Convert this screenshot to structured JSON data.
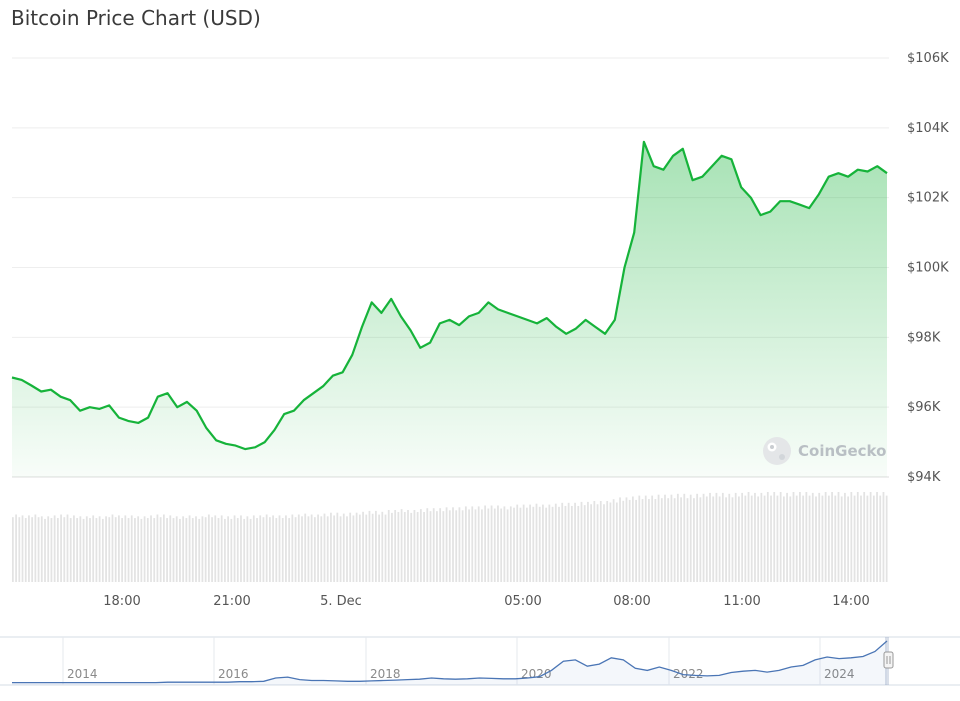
{
  "title": "Bitcoin Price Chart (USD)",
  "watermark": "CoinGecko",
  "colors": {
    "line": "#16b33a",
    "fill_top": "#16b33a",
    "grid": "#eeeeee",
    "volume": "#e3e3e3",
    "navigator": "#4a75b5"
  },
  "chart_data": [
    {
      "type": "area",
      "title": "Bitcoin Price Chart (USD)",
      "x_ticks": [
        "18:00",
        "21:00",
        "5. Dec",
        "05:00",
        "08:00",
        "11:00",
        "14:00"
      ],
      "y_ticks": [
        "$106K",
        "$104K",
        "$102K",
        "$100K",
        "$98K",
        "$96K",
        "$94K"
      ],
      "ylim": [
        94000,
        106000
      ],
      "series": [
        {
          "values": [
            96850,
            96780,
            96620,
            96450,
            96500,
            96300,
            96200,
            95900,
            96000,
            95950,
            96050,
            95700,
            95600,
            95550,
            95700,
            96300,
            96400,
            96000,
            96150,
            95900,
            95400,
            95050,
            94950,
            94900,
            94800,
            94850,
            95000,
            95350,
            95800,
            95900,
            96200,
            96400,
            96600,
            96900,
            97000,
            97500,
            98300,
            99000,
            98700,
            99100,
            98600,
            98200,
            97700,
            97850,
            98400,
            98500,
            98350,
            98600,
            98700,
            99000,
            98800,
            98700,
            98600,
            98500,
            98400,
            98550,
            98300,
            98100,
            98250,
            98500,
            98300,
            98100,
            98500,
            100000,
            101000,
            103600,
            102900,
            102800,
            103200,
            103400,
            102500,
            102600,
            102900,
            103200,
            103100,
            102300,
            102000,
            101500,
            101600,
            101900,
            101900,
            101800,
            101700,
            102100,
            102600,
            102700,
            102600,
            102800,
            102750,
            102900,
            102700
          ]
        }
      ],
      "volume": [
        0.75,
        0.74,
        0.75,
        0.73,
        0.74,
        0.75,
        0.74,
        0.73,
        0.74,
        0.73,
        0.75,
        0.74,
        0.74,
        0.73,
        0.74,
        0.75,
        0.74,
        0.73,
        0.74,
        0.73,
        0.75,
        0.74,
        0.73,
        0.74,
        0.73,
        0.74,
        0.75,
        0.74,
        0.74,
        0.75,
        0.76,
        0.75,
        0.76,
        0.77,
        0.76,
        0.77,
        0.78,
        0.79,
        0.78,
        0.8,
        0.81,
        0.8,
        0.81,
        0.82,
        0.82,
        0.83,
        0.83,
        0.84,
        0.84,
        0.85,
        0.85,
        0.84,
        0.86,
        0.86,
        0.87,
        0.86,
        0.87,
        0.88,
        0.88,
        0.89,
        0.9,
        0.9,
        0.92,
        0.94,
        0.95,
        0.96,
        0.96,
        0.97,
        0.97,
        0.98,
        0.97,
        0.98,
        0.99,
        0.99,
        0.98,
        0.99,
        1.0,
        0.99,
        1.0,
        1.0,
        0.99,
        1.0,
        1.0,
        0.99,
        1.0,
        1.0,
        0.99,
        1.0,
        1.0,
        1.0,
        1.0
      ]
    },
    {
      "type": "line",
      "title": "",
      "x_ticks": [
        "2014",
        "2016",
        "2018",
        "2020",
        "2022",
        "2024"
      ],
      "series": [
        {
          "values": [
            0.01,
            0.01,
            0.01,
            0.01,
            0.01,
            0.01,
            0.01,
            0.01,
            0.01,
            0.01,
            0.01,
            0.01,
            0.01,
            0.02,
            0.02,
            0.02,
            0.02,
            0.02,
            0.02,
            0.03,
            0.03,
            0.04,
            0.12,
            0.14,
            0.08,
            0.06,
            0.06,
            0.05,
            0.04,
            0.04,
            0.05,
            0.06,
            0.07,
            0.08,
            0.09,
            0.12,
            0.1,
            0.09,
            0.1,
            0.12,
            0.11,
            0.1,
            0.1,
            0.12,
            0.15,
            0.3,
            0.52,
            0.55,
            0.4,
            0.45,
            0.6,
            0.55,
            0.35,
            0.3,
            0.38,
            0.3,
            0.2,
            0.18,
            0.17,
            0.18,
            0.25,
            0.28,
            0.3,
            0.26,
            0.3,
            0.38,
            0.42,
            0.55,
            0.62,
            0.58,
            0.6,
            0.63,
            0.75,
            1.0
          ]
        }
      ]
    }
  ]
}
